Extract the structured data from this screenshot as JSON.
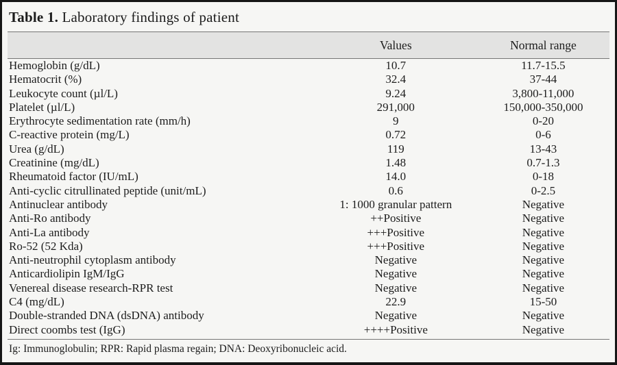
{
  "title": {
    "label": "Table 1.",
    "text": "Laboratory findings of patient"
  },
  "table": {
    "columns": {
      "test": "",
      "values": "Values",
      "range": "Normal range"
    },
    "rows": [
      {
        "test": "Hemoglobin (g/dL)",
        "value": "10.7",
        "range": "11.7-15.5"
      },
      {
        "test": "Hematocrit (%)",
        "value": "32.4",
        "range": "37-44"
      },
      {
        "test": "Leukocyte count (µl/L)",
        "value": "9.24",
        "range": "3,800-11,000"
      },
      {
        "test": "Platelet (µl/L)",
        "value": "291,000",
        "range": "150,000-350,000"
      },
      {
        "test": "Erythrocyte sedimentation rate (mm/h)",
        "value": "9",
        "range": "0-20"
      },
      {
        "test": "C-reactive protein (mg/L)",
        "value": "0.72",
        "range": "0-6"
      },
      {
        "test": "Urea (g/dL)",
        "value": "119",
        "range": "13-43"
      },
      {
        "test": "Creatinine (mg/dL)",
        "value": "1.48",
        "range": "0.7-1.3"
      },
      {
        "test": "Rheumatoid factor (IU/mL)",
        "value": "14.0",
        "range": "0-18"
      },
      {
        "test": "Anti-cyclic citrullinated peptide (unit/mL)",
        "value": "0.6",
        "range": "0-2.5"
      },
      {
        "test": "Antinuclear antibody",
        "value": "1: 1000 granular pattern",
        "range": "Negative"
      },
      {
        "test": "Anti-Ro antibody",
        "value": "++Positive",
        "range": "Negative"
      },
      {
        "test": "Anti-La antibody",
        "value": "+++Positive",
        "range": "Negative"
      },
      {
        "test": "Ro-52 (52 Kda)",
        "value": "+++Positive",
        "range": "Negative"
      },
      {
        "test": "Anti-neutrophil cytoplasm antibody",
        "value": "Negative",
        "range": "Negative"
      },
      {
        "test": "Anticardiolipin IgM/IgG",
        "value": "Negative",
        "range": "Negative"
      },
      {
        "test": "Venereal disease research-RPR test",
        "value": "Negative",
        "range": "Negative"
      },
      {
        "test": "C4 (mg/dL)",
        "value": "22.9",
        "range": "15-50"
      },
      {
        "test": "Double-stranded DNA (dsDNA) antibody",
        "value": "Negative",
        "range": "Negative"
      },
      {
        "test": "Direct coombs test (IgG)",
        "value": "++++Positive",
        "range": "Negative"
      }
    ]
  },
  "footnote": "Ig: Immunoglobulin; RPR: Rapid plasma regain; DNA: Deoxyribonucleic acid.",
  "colors": {
    "page_background": "#f6f6f4",
    "header_band": "#e3e3e2",
    "rule": "#757575",
    "frame": "#161616",
    "text": "#1c1c1c"
  }
}
